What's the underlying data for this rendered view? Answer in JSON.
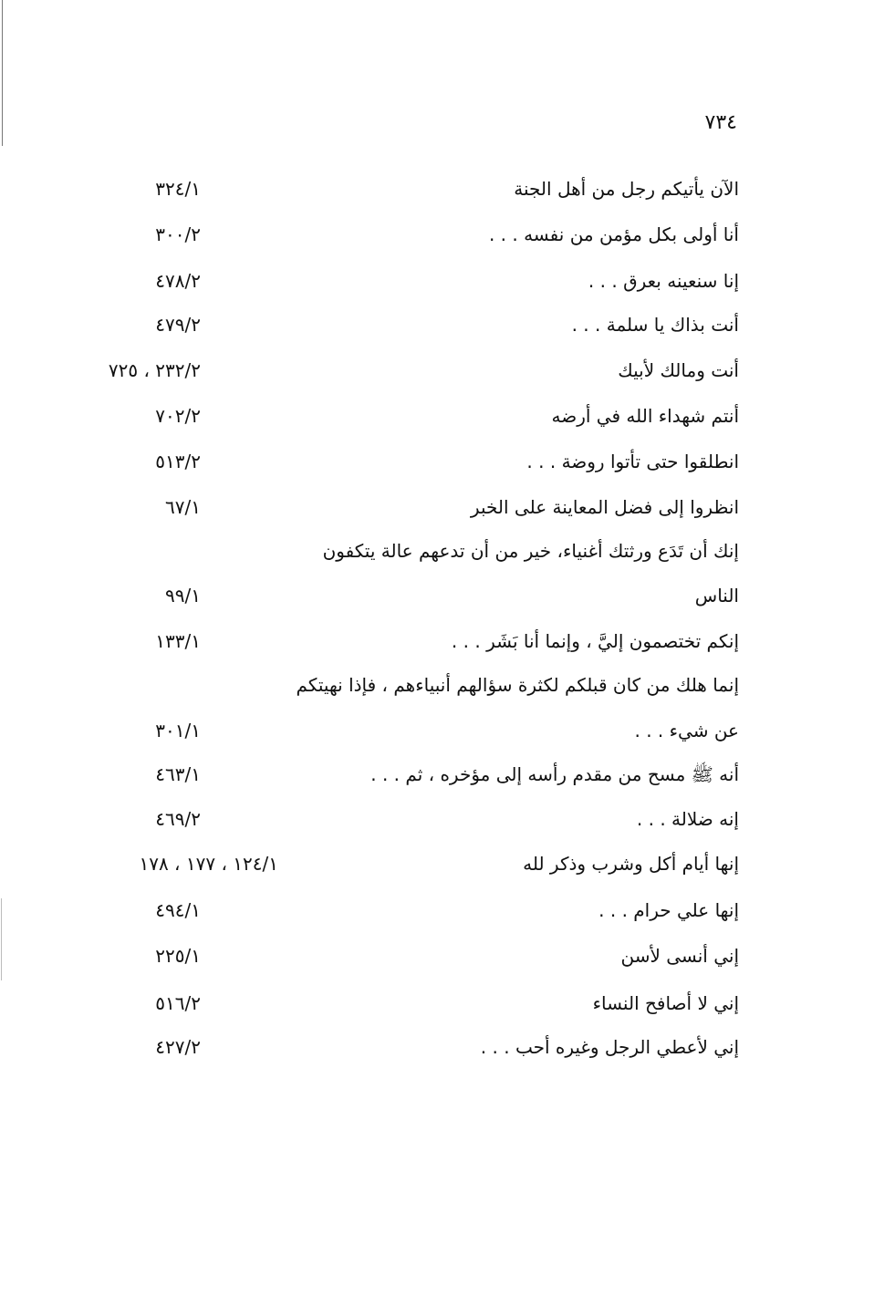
{
  "page_number": "٧٣٤",
  "rows": [
    {
      "text": "الآن يأتيكم رجل من أهل الجنة",
      "ref": "٣٢٤/١"
    },
    {
      "text": "أنا أولى بكل مؤمن من نفسه . . .",
      "ref": "٣٠٠/٢"
    },
    {
      "text": "إنا سنعينه بعرق . . .",
      "ref": "٤٧٨/٢"
    },
    {
      "text": "أنت بذاك يا سلمة . . .",
      "ref": "٤٧٩/٢"
    },
    {
      "text": "أنت ومالك لأبيك",
      "ref": "٢٣٢/٢ ، ٧٢٥"
    },
    {
      "text": "أنتم شهداء الله في أرضه",
      "ref": "٧٠٢/٢"
    },
    {
      "text": "انطلقوا حتى تأتوا روضة . . .",
      "ref": "٥١٣/٢"
    },
    {
      "text": "انظروا إلى فضل المعاينة على الخبر",
      "ref": "٦٧/١"
    },
    {
      "text": "إنك أن تَدَع ورثتك أغنياء، خير من أن تدعهم عالة يتكفون",
      "ref": ""
    },
    {
      "text": "الناس",
      "ref": "٩٩/١"
    },
    {
      "text": "إنكم تختصمون إليَّ ، وإنما أنا بَشَر . . .",
      "ref": "١٣٣/١"
    },
    {
      "text": "إنما هلك من كان قبلكم لكثرة سؤالهم أنبياءهم ، فإذا نهيتكم",
      "ref": ""
    },
    {
      "text": "عن شيء . . .",
      "ref": "٣٠١/١"
    },
    {
      "text": "أنه ﷺ مسح من مقدم رأسه إلى مؤخره ، ثم . . .",
      "ref": "٤٦٣/١"
    },
    {
      "text": "إنه ضلالة . . .",
      "ref": "٤٦٩/٢"
    },
    {
      "text": "إنها أيام أكل وشرب وذكر لله",
      "ref": "١٢٤/١ ، ١٧٧ ، ١٧٨"
    },
    {
      "text": "إنها علي حرام . . .",
      "ref": "٤٩٤/١"
    },
    {
      "text": "إني أنسى لأسن",
      "ref": "٢٢٥/١"
    },
    {
      "text": "إني لا أصافح النساء",
      "ref": "٥١٦/٢"
    },
    {
      "text": "إني لأعطي الرجل وغيره أحب . . .",
      "ref": "٤٢٧/٢"
    }
  ]
}
